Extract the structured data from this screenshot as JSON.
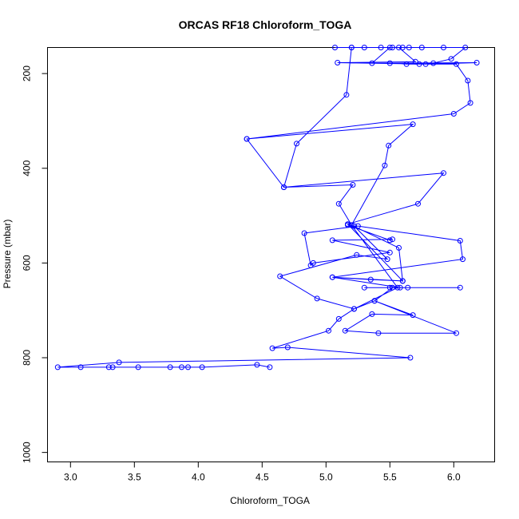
{
  "chart_data": {
    "type": "line",
    "title": "ORCAS RF18 Chloroform_TOGA",
    "xlabel": "Chloroform_TOGA",
    "ylabel": "Pressure (mbar)",
    "xlim": [
      2.82,
      6.32
    ],
    "ylim": [
      1020,
      145
    ],
    "y_reversed": true,
    "xticks": [
      "3.0",
      "3.5",
      "4.0",
      "4.5",
      "5.0",
      "5.5",
      "6.0"
    ],
    "xtick_values": [
      3.0,
      3.5,
      4.0,
      4.5,
      5.0,
      5.5,
      6.0
    ],
    "yticks": [
      "200",
      "400",
      "600",
      "800",
      "1000"
    ],
    "ytick_values": [
      200,
      400,
      600,
      800,
      1000
    ],
    "grid": false,
    "series": [
      {
        "color": "#0000ff",
        "marker": "open-circle",
        "points": [
          [
            4.56,
            820
          ],
          [
            4.46,
            815
          ],
          [
            4.03,
            820
          ],
          [
            3.92,
            820
          ],
          [
            3.87,
            820
          ],
          [
            3.78,
            820
          ],
          [
            3.53,
            820
          ],
          [
            3.33,
            820
          ],
          [
            3.3,
            820
          ],
          [
            3.08,
            820
          ],
          [
            2.9,
            820
          ],
          [
            3.38,
            810
          ],
          [
            5.66,
            800
          ],
          [
            4.7,
            778
          ],
          [
            4.58,
            780
          ],
          [
            5.02,
            743
          ],
          [
            5.1,
            718
          ],
          [
            5.22,
            697
          ],
          [
            5.38,
            680
          ],
          [
            5.68,
            710
          ],
          [
            5.36,
            708
          ],
          [
            5.15,
            743
          ],
          [
            5.41,
            748
          ],
          [
            6.02,
            748
          ],
          [
            5.38,
            680
          ],
          [
            5.52,
            652
          ],
          [
            6.05,
            652
          ],
          [
            5.3,
            652
          ],
          [
            5.64,
            652
          ],
          [
            5.5,
            652
          ],
          [
            5.58,
            652
          ],
          [
            5.05,
            630
          ],
          [
            5.35,
            635
          ],
          [
            5.6,
            638
          ],
          [
            5.05,
            630
          ],
          [
            6.07,
            592
          ],
          [
            6.05,
            553
          ],
          [
            5.25,
            522
          ],
          [
            4.83,
            537
          ],
          [
            4.88,
            605
          ],
          [
            4.9,
            600
          ],
          [
            5.5,
            578
          ],
          [
            5.05,
            552
          ],
          [
            5.52,
            550
          ],
          [
            5.5,
            552
          ],
          [
            5.17,
            520
          ],
          [
            5.22,
            522
          ],
          [
            5.48,
            592
          ],
          [
            5.24,
            583
          ],
          [
            4.64,
            628
          ],
          [
            4.93,
            675
          ],
          [
            5.22,
            697
          ],
          [
            5.56,
            652
          ],
          [
            5.2,
            520
          ],
          [
            5.57,
            568
          ],
          [
            5.6,
            638
          ],
          [
            5.17,
            518
          ],
          [
            5.72,
            475
          ],
          [
            5.92,
            410
          ],
          [
            4.67,
            440
          ],
          [
            4.38,
            338
          ],
          [
            6.0,
            285
          ],
          [
            6.13,
            262
          ],
          [
            6.11,
            215
          ],
          [
            6.02,
            180
          ],
          [
            5.73,
            180
          ],
          [
            5.63,
            180
          ],
          [
            5.5,
            178
          ],
          [
            6.18,
            177
          ],
          [
            5.78,
            180
          ],
          [
            5.09,
            177
          ],
          [
            5.7,
            175
          ],
          [
            5.57,
            145
          ],
          [
            5.92,
            145
          ],
          [
            5.6,
            145
          ],
          [
            5.3,
            145
          ],
          [
            5.2,
            145
          ],
          [
            5.07,
            145
          ],
          [
            5.43,
            145
          ],
          [
            5.5,
            145
          ],
          [
            5.36,
            178
          ],
          [
            5.84,
            178
          ],
          [
            5.98,
            169
          ],
          [
            6.09,
            145
          ],
          [
            5.75,
            145
          ],
          [
            5.65,
            145
          ],
          [
            5.52,
            145
          ],
          [
            5.2,
            145
          ],
          [
            5.16,
            245
          ],
          [
            4.77,
            348
          ],
          [
            4.67,
            440
          ],
          [
            5.21,
            435
          ],
          [
            5.1,
            475
          ],
          [
            5.2,
            520
          ],
          [
            5.46,
            394
          ],
          [
            5.49,
            352
          ],
          [
            5.68,
            307
          ],
          [
            4.38,
            338
          ]
        ]
      }
    ]
  }
}
